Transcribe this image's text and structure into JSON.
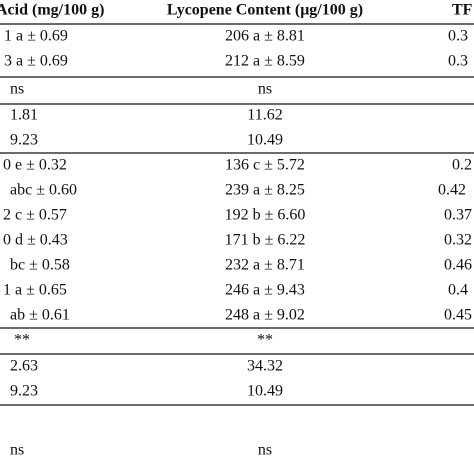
{
  "table": {
    "header": [
      "Acid (mg/100 g)",
      "Lycopene Content (μg/100 g)",
      "TF"
    ],
    "rows": [
      [
        "1 a ± 0.69",
        "206 a ± 8.81",
        "0.3"
      ],
      [
        "3 a ± 0.69",
        "212 a ± 8.59",
        "0.3"
      ],
      [
        "ns",
        "ns"
      ],
      [
        "1.81",
        "11.62"
      ],
      [
        "9.23",
        "10.49"
      ],
      [
        "0 e ± 0.32",
        "136 c ± 5.72",
        "0.2"
      ],
      [
        "abc ± 0.60",
        "239 a ± 8.25",
        "0.42"
      ],
      [
        "2 c ± 0.57",
        "192 b ± 6.60",
        "0.37"
      ],
      [
        "0 d ± 0.43",
        "171 b ± 6.22",
        "0.32"
      ],
      [
        "bc ± 0.58",
        "232 a ± 8.71",
        "0.46"
      ],
      [
        "1 a ± 0.65",
        "246 a ± 9.43",
        "0.4"
      ],
      [
        "ab ± 0.61",
        "248 a ± 9.02",
        "0.45"
      ],
      [
        "**",
        "**"
      ],
      [
        "2.63",
        "34.32"
      ],
      [
        "9.23",
        "10.49"
      ],
      [
        "ns",
        "ns"
      ]
    ]
  }
}
